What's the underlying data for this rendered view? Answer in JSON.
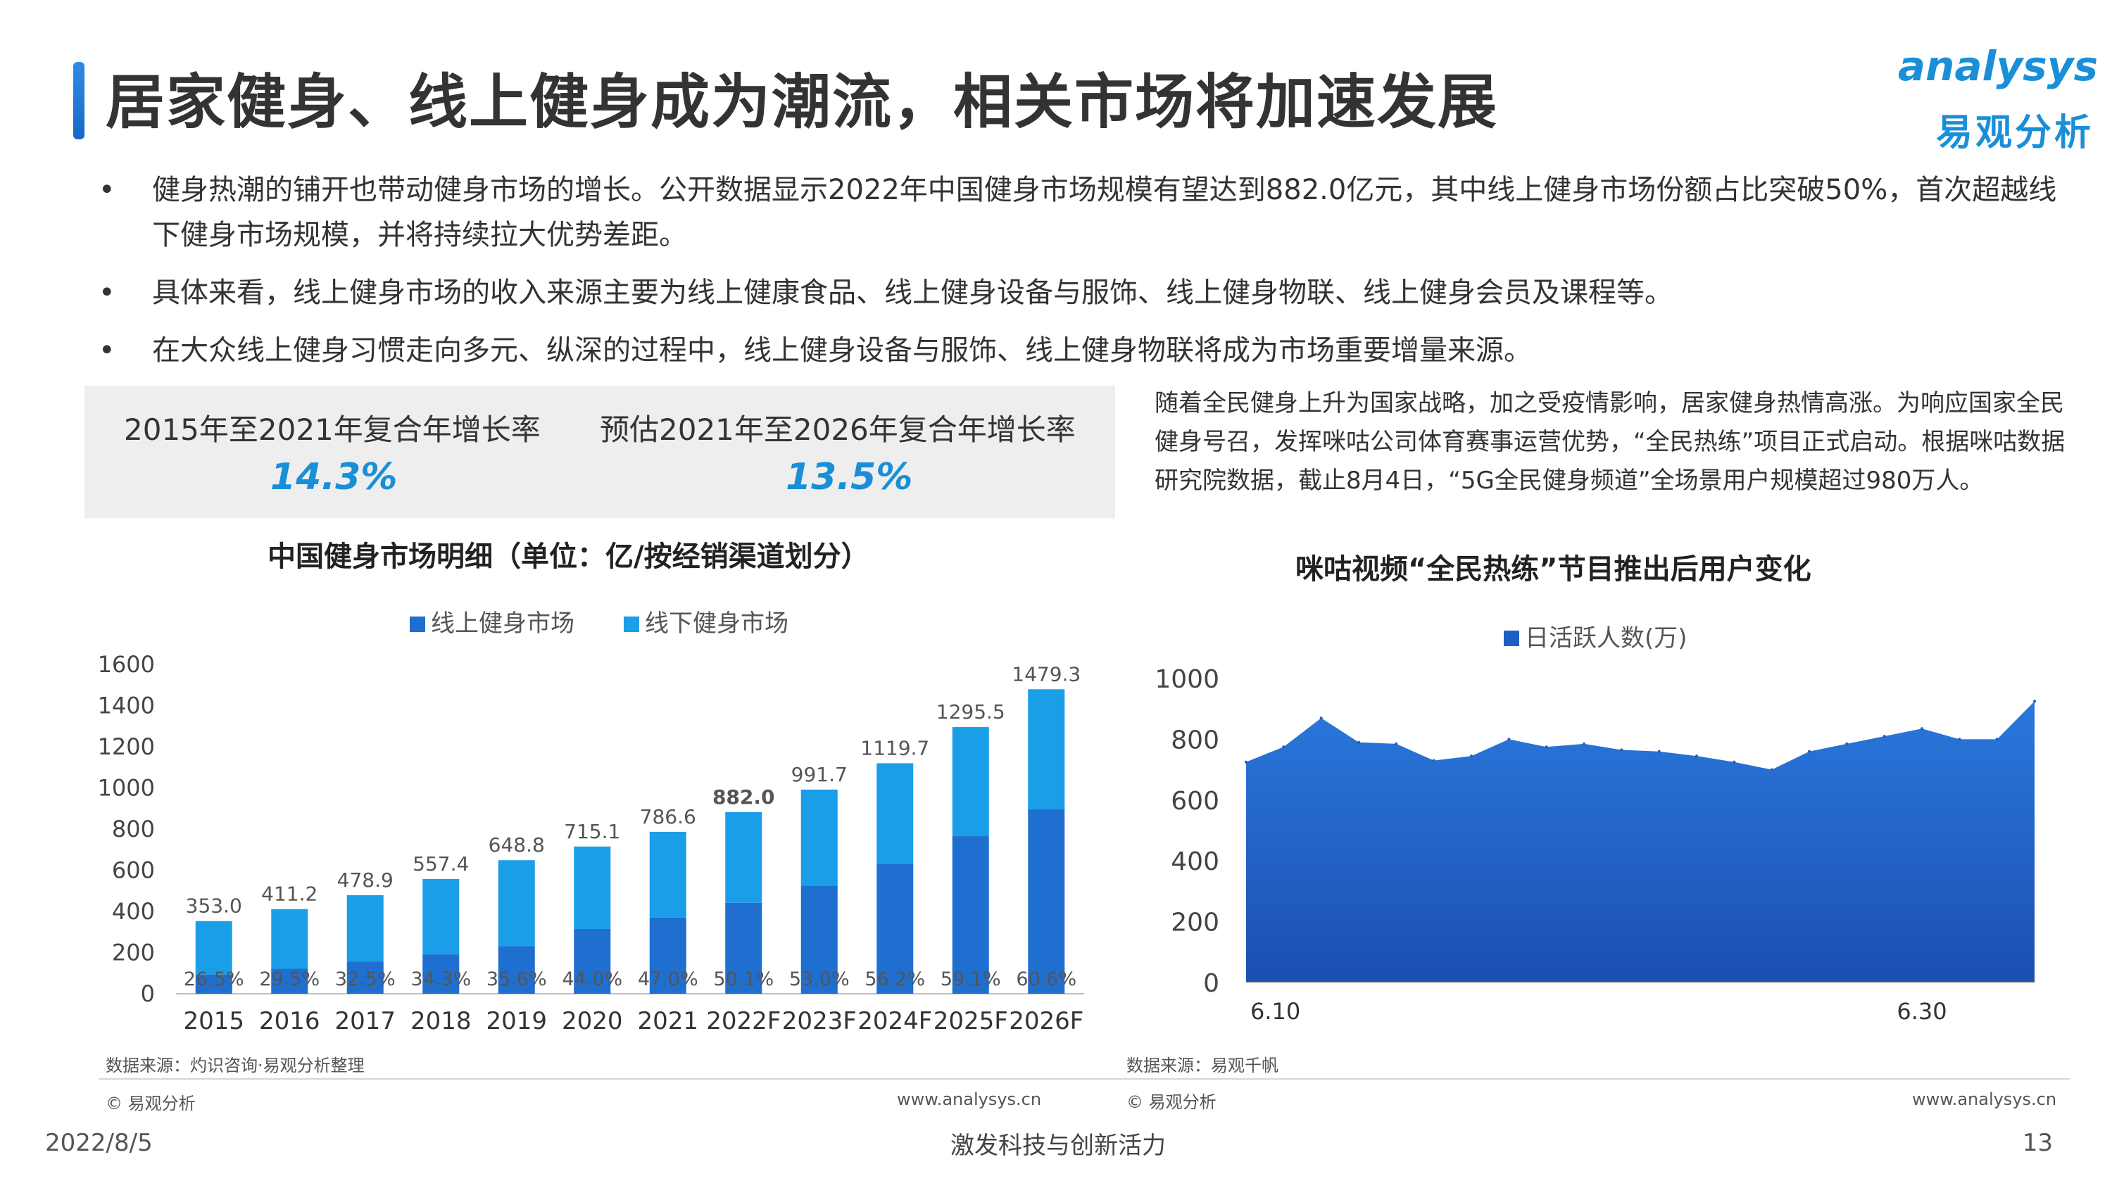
{
  "header": {
    "title": "居家健身、线上健身成为潮流，相关市场将加速发展",
    "logo_en": "analysys",
    "logo_cn": "易观分析"
  },
  "bullets": [
    "健身热潮的铺开也带动健身市场的增长。公开数据显示2022年中国健身市场规模有望达到882.0亿元，其中线上健身市场份额占比突破50%，首次超越线下健身市场规模，并将持续拉大优势差距。",
    "具体来看，线上健身市场的收入来源主要为线上健康食品、线上健身设备与服饰、线上健身物联、线上健身会员及课程等。",
    "在大众线上健身习惯走向多元、纵深的过程中，线上健身设备与服饰、线上健身物联将成为市场重要增量来源。"
  ],
  "stats": [
    {
      "label": "2015年至2021年复合年增长率",
      "value": "14.3%"
    },
    {
      "label": "预估2021年至2026年复合年增长率",
      "value": "13.5%"
    }
  ],
  "note": "随着全民健身上升为国家战略，加之受疫情影响，居家健身热情高涨。为响应国家全民健身号召，发挥咪咕公司体育赛事运营优势，“全民热练”项目正式启动。根据咪咕数据研究院数据，截止8月4日，“5G全民健身频道”全场景用户规模超过980万人。",
  "footer": {
    "left_source": "数据来源：灼识咨询·易观分析整理",
    "left_copyright": "© 易观分析",
    "left_url": "www.analysys.cn",
    "right_source": "数据来源：易观千帆",
    "right_copyright": "© 易观分析",
    "right_url": "www.analysys.cn",
    "date": "2022/8/5",
    "slogan": "激发科技与创新活力",
    "page": "13"
  },
  "colors": {
    "online": "#1f6fd1",
    "offline": "#1a9ee8",
    "area": "#1f5fc4",
    "accent": "#1a8fd8"
  },
  "chart_data": [
    {
      "type": "bar",
      "stacked": true,
      "title": "中国健身市场明细（单位：亿/按经销渠道划分）",
      "categories": [
        "2015",
        "2016",
        "2017",
        "2018",
        "2019",
        "2020",
        "2021",
        "2022F",
        "2023F",
        "2024F",
        "2025F",
        "2026F"
      ],
      "totals": [
        353.0,
        411.2,
        478.9,
        557.4,
        648.8,
        715.1,
        786.6,
        882.0,
        991.7,
        1119.7,
        1295.5,
        1479.3
      ],
      "total_labels": [
        "353.0",
        "411.2",
        "478.9",
        "557.4",
        "648.8",
        "715.1",
        "786.6",
        "882.0",
        "991.7",
        "1119.7",
        "1295.5",
        "1479.3"
      ],
      "online_share": [
        26.5,
        29.5,
        32.5,
        34.3,
        35.6,
        44.0,
        47.0,
        50.1,
        53.0,
        56.2,
        59.1,
        60.6
      ],
      "online_share_labels": [
        "26.5%",
        "29.5%",
        "32.5%",
        "34.3%",
        "35.6%",
        "44.0%",
        "47.0%",
        "50.1%",
        "53.0%",
        "56.2%",
        "59.1%",
        "60.6%"
      ],
      "series": [
        {
          "name": "线上健身市场"
        },
        {
          "name": "线下健身市场"
        }
      ],
      "ylim": [
        0,
        1600
      ],
      "yticks": [
        "0",
        "200",
        "400",
        "600",
        "800",
        "1000",
        "1200",
        "1400",
        "1600"
      ],
      "legend": "top"
    },
    {
      "type": "area",
      "title": "咪咕视频“全民热练”节目推出后用户变化",
      "series": [
        {
          "name": "日活跃人数(万)",
          "values": [
            725,
            775,
            870,
            790,
            785,
            730,
            745,
            800,
            775,
            785,
            765,
            760,
            745,
            725,
            700,
            760,
            785,
            810,
            835,
            800,
            800,
            925
          ]
        }
      ],
      "x_labels": [
        "6.10",
        "6.30"
      ],
      "ylim": [
        0,
        1000
      ],
      "yticks": [
        "0",
        "200",
        "400",
        "600",
        "800",
        "1000"
      ],
      "legend": "top"
    }
  ]
}
